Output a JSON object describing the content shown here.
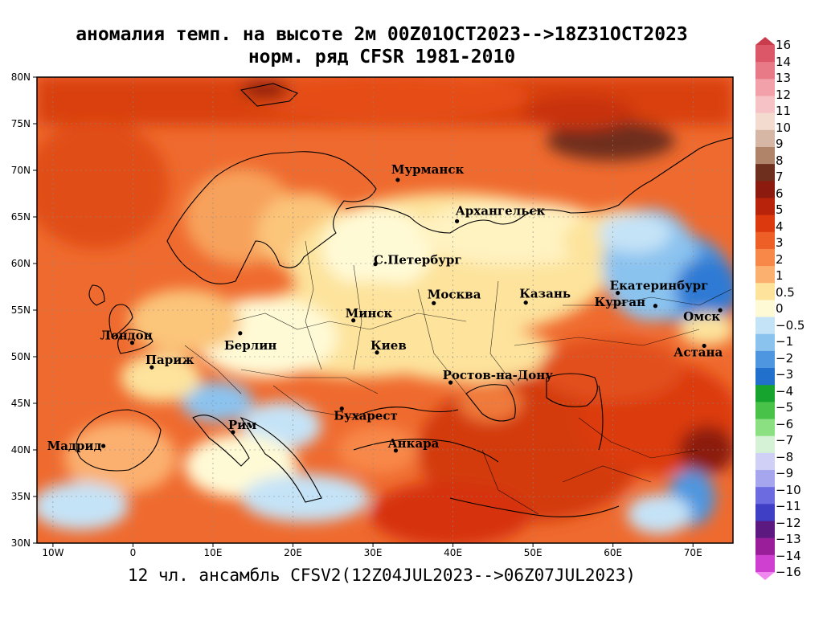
{
  "title": {
    "line1": "аномалия темп. на высоте 2м 00Z01OCT2023-->18Z31OCT2023",
    "line2": "норм. ряд CFSR 1981-2010"
  },
  "footer": "12 чл. ансамбль CFSV2(12Z04JUL2023-->06Z07JUL2023)",
  "map": {
    "lon_range": [
      -12,
      75
    ],
    "lat_range": [
      30,
      80
    ],
    "lat_labels": [
      "30N",
      "35N",
      "40N",
      "45N",
      "50N",
      "55N",
      "60N",
      "65N",
      "70N",
      "75N",
      "80N"
    ],
    "lat_values": [
      30,
      35,
      40,
      45,
      50,
      55,
      60,
      65,
      70,
      75,
      80
    ],
    "lon_labels": [
      "10W",
      "0",
      "10E",
      "20E",
      "30E",
      "40E",
      "50E",
      "60E",
      "70E"
    ],
    "lon_values": [
      -10,
      0,
      10,
      20,
      30,
      40,
      50,
      60,
      70
    ]
  },
  "cities": [
    {
      "name": "Мурманск",
      "lon": 33.1,
      "lat": 68.97
    },
    {
      "name": "Архангельск",
      "lon": 40.5,
      "lat": 64.54
    },
    {
      "name": "С.Петербург",
      "lon": 30.3,
      "lat": 59.94
    },
    {
      "name": "Москва",
      "lon": 37.6,
      "lat": 55.75
    },
    {
      "name": "Казань",
      "lon": 49.1,
      "lat": 55.8
    },
    {
      "name": "Екатеринбург",
      "lon": 60.6,
      "lat": 56.84
    },
    {
      "name": "Курган",
      "lon": 65.3,
      "lat": 55.45
    },
    {
      "name": "Омск",
      "lon": 73.4,
      "lat": 54.99
    },
    {
      "name": "Астана",
      "lon": 71.4,
      "lat": 51.17
    },
    {
      "name": "Минск",
      "lon": 27.55,
      "lat": 53.9
    },
    {
      "name": "Киев",
      "lon": 30.5,
      "lat": 50.45
    },
    {
      "name": "Берлин",
      "lon": 13.4,
      "lat": 52.52
    },
    {
      "name": "Лондон",
      "lon": -0.1,
      "lat": 51.5
    },
    {
      "name": "Париж",
      "lon": 2.35,
      "lat": 48.86
    },
    {
      "name": "Ростов-на-Дону",
      "lon": 39.7,
      "lat": 47.23
    },
    {
      "name": "Бухарест",
      "lon": 26.1,
      "lat": 44.43
    },
    {
      "name": "Рим",
      "lon": 12.5,
      "lat": 41.9
    },
    {
      "name": "Мадрид",
      "lon": -3.7,
      "lat": 40.42
    },
    {
      "name": "Анкара",
      "lon": 32.85,
      "lat": 39.93
    }
  ],
  "colorbar": {
    "labels": [
      "16",
      "14",
      "13",
      "12",
      "11",
      "10",
      "9",
      "8",
      "7",
      "6",
      "5",
      "4",
      "3",
      "2",
      "1",
      "0.5",
      "0",
      "−0.5",
      "−1",
      "−2",
      "−3",
      "−4",
      "−5",
      "−6",
      "−7",
      "−8",
      "−9",
      "−10",
      "−11",
      "−12",
      "−13",
      "−14",
      "−16"
    ],
    "colors": [
      "#c83c4c",
      "#dc5868",
      "#e87a88",
      "#f2a0aa",
      "#f7c2c6",
      "#f3dccf",
      "#d6b6a4",
      "#b08468",
      "#6e2f1f",
      "#8c1a0e",
      "#b8240b",
      "#dc3a0e",
      "#ee5f28",
      "#f88848",
      "#fbb070",
      "#fde39c",
      "#fffad6",
      "#c5e3f7",
      "#8bc3ef",
      "#4e96e0",
      "#2070cc",
      "#16a32e",
      "#49c24a",
      "#8be082",
      "#d6f2d6",
      "#d0d0f7",
      "#a6a6ef",
      "#6c6ce0",
      "#3f3fc6",
      "#5c1a80",
      "#9a1e9a",
      "#d040d0",
      "#f088f0"
    ]
  }
}
